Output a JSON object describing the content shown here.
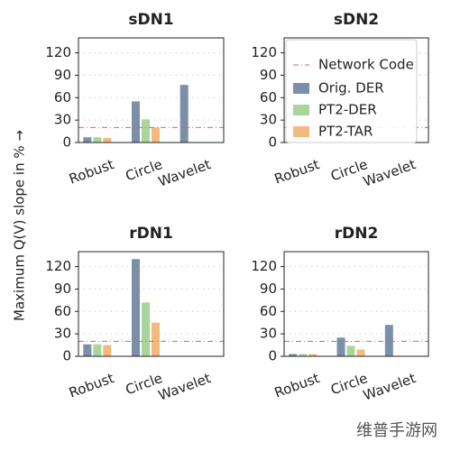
{
  "ylabel": "Maximum Q(V) slope in % →",
  "watermark": "维普手游网",
  "chart_data": [
    {
      "type": "bar",
      "title": "sDN1",
      "categories": [
        "Robust",
        "Circle",
        "Wavelet"
      ],
      "series": [
        {
          "name": "Orig. DER",
          "color": "#7b8fa8",
          "values": [
            7,
            55,
            77
          ]
        },
        {
          "name": "PT2-DER",
          "color": "#a8d69a",
          "values": [
            7,
            31,
            null
          ]
        },
        {
          "name": "PT2-TAR",
          "color": "#f6b97d",
          "values": [
            6,
            20,
            null
          ]
        }
      ],
      "reference_line": {
        "label": "Network Code",
        "value": 20,
        "color": "#e06060"
      },
      "ylim": [
        0,
        140
      ],
      "yticks": [
        0,
        30,
        60,
        90,
        120
      ],
      "grid": true
    },
    {
      "type": "bar",
      "title": "sDN2",
      "categories": [
        "Robust",
        "Circle",
        "Wavelet"
      ],
      "series": [
        {
          "name": "Orig. DER",
          "color": "#7b8fa8",
          "values": [
            null,
            null,
            null
          ]
        },
        {
          "name": "PT2-DER",
          "color": "#a8d69a",
          "values": [
            null,
            null,
            null
          ]
        },
        {
          "name": "PT2-TAR",
          "color": "#f6b97d",
          "values": [
            null,
            null,
            null
          ]
        }
      ],
      "reference_line": {
        "label": "Network Code",
        "value": 20,
        "color": "#e06060"
      },
      "ylim": [
        0,
        140
      ],
      "yticks": [
        0,
        30,
        60,
        90,
        120
      ],
      "grid": true,
      "legend": "upper right"
    },
    {
      "type": "bar",
      "title": "rDN1",
      "categories": [
        "Robust",
        "Circle",
        "Wavelet"
      ],
      "series": [
        {
          "name": "Orig. DER",
          "color": "#7b8fa8",
          "values": [
            16,
            130,
            null
          ]
        },
        {
          "name": "PT2-DER",
          "color": "#a8d69a",
          "values": [
            16,
            72,
            null
          ]
        },
        {
          "name": "PT2-TAR",
          "color": "#f6b97d",
          "values": [
            15,
            45,
            null
          ]
        }
      ],
      "reference_line": {
        "label": "Network Code",
        "value": 20,
        "color": "#e06060"
      },
      "ylim": [
        0,
        140
      ],
      "yticks": [
        0,
        30,
        60,
        90,
        120
      ],
      "grid": true
    },
    {
      "type": "bar",
      "title": "rDN2",
      "categories": [
        "Robust",
        "Circle",
        "Wavelet"
      ],
      "series": [
        {
          "name": "Orig. DER",
          "color": "#7b8fa8",
          "values": [
            3,
            25,
            42
          ]
        },
        {
          "name": "PT2-DER",
          "color": "#a8d69a",
          "values": [
            3,
            14,
            null
          ]
        },
        {
          "name": "PT2-TAR",
          "color": "#f6b97d",
          "values": [
            3,
            9,
            null
          ]
        }
      ],
      "reference_line": {
        "label": "Network Code",
        "value": 20,
        "color": "#e06060"
      },
      "ylim": [
        0,
        140
      ],
      "yticks": [
        0,
        30,
        60,
        90,
        120
      ],
      "grid": true
    }
  ]
}
